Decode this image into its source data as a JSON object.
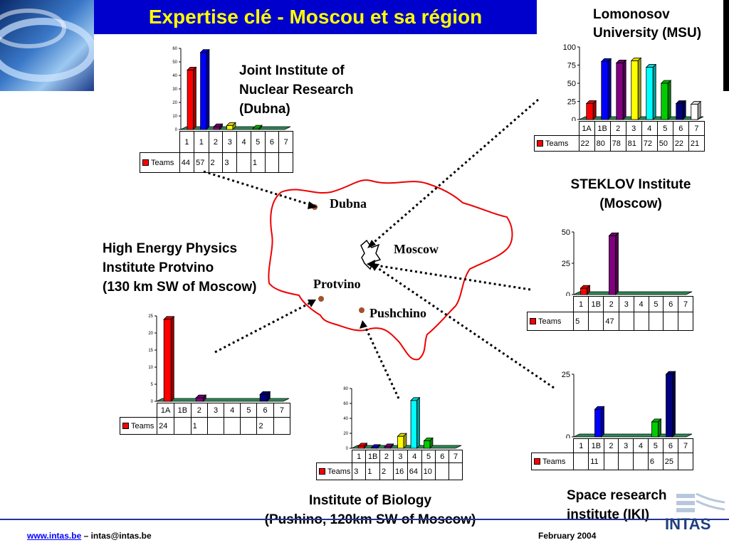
{
  "title": "Expertise clé - Moscou et sa région",
  "map": {
    "cities": {
      "dubna": "Dubna",
      "moscow": "Moscow",
      "protvino": "Protvino",
      "pushchino": "Pushchino"
    }
  },
  "labels": {
    "jinr": [
      "Joint Institute of",
      "Nuclear Research",
      "(Dubna)"
    ],
    "msu": [
      "Lomonosov",
      "University (MSU)"
    ],
    "steklov": [
      "STEKLOV Institute",
      "(Moscow)"
    ],
    "ihep": [
      "High Energy Physics",
      "Institute Protvino",
      "(130 km SW of Moscow)"
    ],
    "biology": [
      "Institute of Biology",
      "(Pushino, 120km SW of Moscow)"
    ],
    "iki": [
      "Space research",
      "institute (IKI)"
    ]
  },
  "footer": {
    "link": "www.intas.be",
    "email": " – intas@intas.be",
    "date": "February 2004",
    "logo_text": "INTAS"
  },
  "colors": {
    "banner": "#0000cc",
    "title": "#ffff00",
    "map_border": "#ee0000",
    "city_dot": "#a0522d",
    "chart_floor": "#2e8b57"
  },
  "chart_data": [
    {
      "id": "jinr",
      "type": "bar",
      "categories": [
        "1",
        "1",
        "2",
        "3",
        "4",
        "5",
        "6",
        "7"
      ],
      "values": [
        44,
        57,
        2,
        3,
        null,
        1,
        null,
        null
      ],
      "value_labels": [
        "44",
        "57",
        "2",
        "3",
        "",
        "1",
        "",
        ""
      ],
      "colors": [
        "#ff0000",
        "#0000ff",
        "#800080",
        "#ffff00",
        "#00ffff",
        "#00cc00",
        "#000080",
        "#ffffff"
      ],
      "series": [
        {
          "name": "Teams"
        }
      ],
      "ylim": [
        0,
        60
      ],
      "yticks": [
        "0",
        "10",
        "20",
        "30",
        "40",
        "50",
        "60"
      ]
    },
    {
      "id": "msu",
      "type": "bar",
      "categories": [
        "1A",
        "1B",
        "2",
        "3",
        "4",
        "5",
        "6",
        "7"
      ],
      "values": [
        22,
        80,
        78,
        81,
        72,
        50,
        22,
        21
      ],
      "value_labels": [
        "22",
        "80",
        "78",
        "81",
        "72",
        "50",
        "22",
        "21"
      ],
      "colors": [
        "#ff0000",
        "#0000ff",
        "#800080",
        "#ffff00",
        "#00ffff",
        "#00cc00",
        "#000080",
        "#ffffff"
      ],
      "series": [
        {
          "name": "Teams"
        }
      ],
      "ylim": [
        0,
        100
      ],
      "yticks": [
        "0",
        "25",
        "50",
        "75",
        "100"
      ]
    },
    {
      "id": "steklov",
      "type": "bar",
      "categories": [
        "1",
        "1B",
        "2",
        "3",
        "4",
        "5",
        "6",
        "7"
      ],
      "values": [
        5,
        null,
        47,
        null,
        null,
        null,
        null,
        null
      ],
      "value_labels": [
        "5",
        "",
        "47",
        "",
        "",
        "",
        "",
        ""
      ],
      "colors": [
        "#ff0000",
        "#0000ff",
        "#800080",
        "#ffff00",
        "#00ffff",
        "#00cc00",
        "#000080",
        "#ffffff"
      ],
      "series": [
        {
          "name": "Teams"
        }
      ],
      "ylim": [
        0,
        50
      ],
      "yticks": [
        "0",
        "25",
        "50"
      ]
    },
    {
      "id": "ihep",
      "type": "bar",
      "categories": [
        "1A",
        "1B",
        "2",
        "3",
        "4",
        "5",
        "6",
        "7"
      ],
      "values": [
        24,
        null,
        1,
        null,
        null,
        null,
        2,
        null
      ],
      "value_labels": [
        "24",
        "",
        "1",
        "",
        "",
        "",
        "2",
        ""
      ],
      "colors": [
        "#ff0000",
        "#0000ff",
        "#800080",
        "#ffff00",
        "#00ffff",
        "#00cc00",
        "#000080",
        "#ffffff"
      ],
      "series": [
        {
          "name": "Teams"
        }
      ],
      "ylim": [
        0,
        25
      ],
      "yticks": [
        "0",
        "5",
        "10",
        "15",
        "20",
        "25"
      ]
    },
    {
      "id": "biology",
      "type": "bar",
      "categories": [
        "1",
        "1B",
        "2",
        "3",
        "4",
        "5",
        "6",
        "7"
      ],
      "values": [
        3,
        1,
        2,
        16,
        64,
        10,
        null,
        null
      ],
      "value_labels": [
        "3",
        "1",
        "2",
        "16",
        "64",
        "10",
        "",
        ""
      ],
      "colors": [
        "#ff0000",
        "#0000ff",
        "#800080",
        "#ffff00",
        "#00ffff",
        "#00cc00",
        "#000080",
        "#ffffff"
      ],
      "series": [
        {
          "name": "Teams"
        }
      ],
      "ylim": [
        0,
        80
      ],
      "yticks": [
        "0",
        "20",
        "40",
        "60",
        "80"
      ]
    },
    {
      "id": "iki",
      "type": "bar",
      "categories": [
        "1",
        "1B",
        "2",
        "3",
        "4",
        "5",
        "6",
        "7"
      ],
      "values": [
        null,
        11,
        null,
        null,
        null,
        6,
        25,
        null
      ],
      "value_labels": [
        "",
        "11",
        "",
        "",
        "",
        "6",
        "25",
        ""
      ],
      "colors": [
        "#ff0000",
        "#0000ff",
        "#800080",
        "#ffff00",
        "#00ffff",
        "#00cc00",
        "#000080",
        "#ffffff"
      ],
      "series": [
        {
          "name": "Teams"
        }
      ],
      "ylim": [
        0,
        25
      ],
      "yticks": [
        "0",
        "25"
      ]
    }
  ]
}
